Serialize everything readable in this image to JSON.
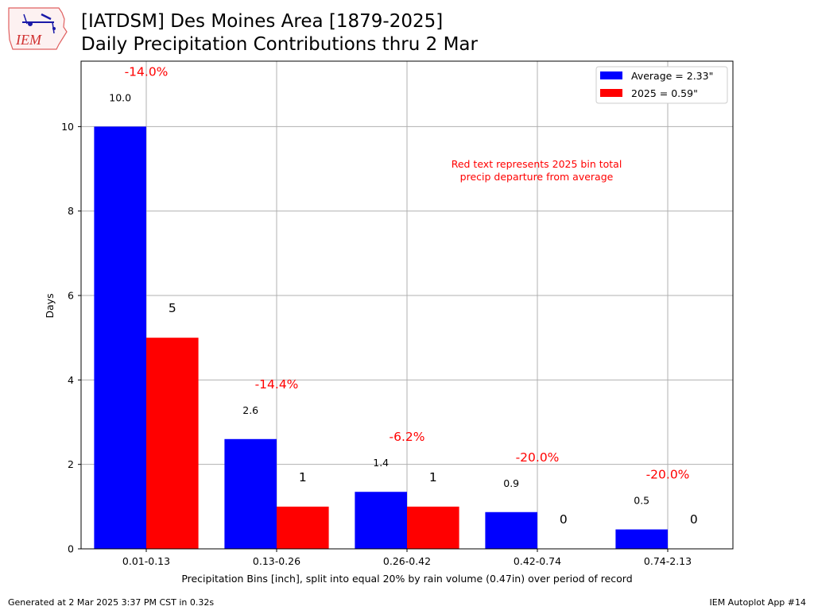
{
  "header": {
    "title_line1": "[IATDSM] Des Moines Area [1879-2025]",
    "title_line2": "Daily Precipitation Contributions thru 2 Mar",
    "logo_text": "IEM"
  },
  "footer": {
    "left": "Generated at 2 Mar 2025 3:37 PM CST in 0.32s",
    "right": "IEM Autoplot App #14"
  },
  "colors": {
    "average": "#0000ff",
    "year": "#ff0000",
    "departure_text": "#ff0000",
    "grid": "#b0b0b0"
  },
  "chart_data": {
    "type": "bar",
    "categories": [
      "0.01-0.13",
      "0.13-0.26",
      "0.26-0.42",
      "0.42-0.74",
      "0.74-2.13"
    ],
    "series": [
      {
        "name": "Average = 2.33\"",
        "values": [
          10.0,
          2.6,
          1.35,
          0.87,
          0.46
        ],
        "labels": [
          "10.0",
          "2.6",
          "1.4",
          "0.9",
          "0.5"
        ]
      },
      {
        "name": "2025 = 0.59\"",
        "values": [
          5,
          1,
          1,
          0,
          0
        ],
        "labels": [
          "5",
          "1",
          "1",
          "0",
          "0"
        ]
      }
    ],
    "departures": [
      "-14.0%",
      "-14.4%",
      "-6.2%",
      "-20.0%",
      "-20.0%"
    ],
    "annotation": "Red text represents 2025 bin total\nprecip departure from average",
    "xlabel": "Precipitation Bins [inch], split into equal 20% by rain volume (0.47in) over period of record",
    "ylabel": "Days",
    "ylim": [
      0,
      11.55
    ],
    "yticks": [
      0,
      2,
      4,
      6,
      8,
      10
    ],
    "grid": true,
    "legend_position": "top-right"
  }
}
